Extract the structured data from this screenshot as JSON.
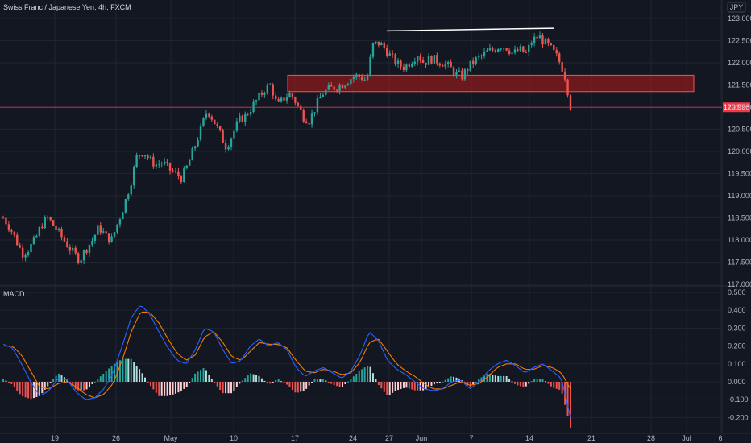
{
  "header": {
    "title": "Swiss Franc / Japanese Yen, 4h, FXCM",
    "currency": "JPY"
  },
  "macd_label": "MACD",
  "colors": {
    "bg": "#131722",
    "grid": "#1f2430",
    "up": "#26a69a",
    "down": "#ef5350",
    "macd": "#2962ff",
    "signal": "#f57c00",
    "zone": "#b71c1c",
    "priceLine": "#f23645"
  },
  "chart_data": [
    {
      "type": "candlestick",
      "symbol": "CHFJPY",
      "timeframe": "4h",
      "last_price": "120.996",
      "ylim": [
        117.0,
        123.1
      ],
      "y_ticks": [
        "123.000",
        "122.500",
        "122.000",
        "121.500",
        "121.000",
        "120.500",
        "120.000",
        "119.500",
        "119.000",
        "118.500",
        "118.000",
        "117.500",
        "117.000"
      ],
      "x_ticks": [
        "19",
        "26",
        "May",
        "10",
        "17",
        "24",
        "27",
        "Jun",
        "7",
        "14",
        "21",
        "28",
        "Jul",
        "6"
      ],
      "zone": {
        "from_tick": "17",
        "to_tick": "6",
        "low": 121.35,
        "high": 121.72
      },
      "trendline": {
        "start": 122.72,
        "end": 122.78
      },
      "close_path": [
        118.5,
        118.3,
        118.0,
        117.7,
        117.8,
        118.0,
        118.35,
        118.5,
        118.3,
        118.1,
        117.9,
        117.7,
        117.55,
        117.8,
        118.0,
        118.3,
        118.1,
        118.0,
        118.4,
        118.8,
        119.3,
        119.9,
        120.0,
        119.8,
        119.7,
        119.75,
        119.6,
        119.5,
        119.4,
        119.7,
        120.1,
        120.5,
        120.95,
        120.7,
        120.4,
        120.1,
        120.4,
        120.7,
        120.8,
        121.0,
        121.2,
        121.4,
        121.5,
        121.0,
        121.2,
        121.3,
        121.1,
        120.8,
        120.7,
        121.0,
        121.3,
        121.4,
        121.45,
        121.5,
        121.6,
        121.7,
        121.7,
        121.6,
        122.4,
        122.45,
        122.3,
        122.1,
        121.95,
        121.9,
        122.05,
        122.2,
        122.0,
        122.1,
        122.05,
        122.0,
        121.9,
        121.75,
        121.7,
        121.9,
        122.05,
        122.15,
        122.25,
        122.3,
        122.4,
        122.35,
        122.2,
        122.3,
        122.2,
        122.5,
        122.6,
        122.45,
        122.3,
        122.1,
        121.8,
        121.05
      ],
      "macd_ylim": [
        -0.23,
        0.52
      ],
      "macd_ticks": [
        "0.500",
        "0.400",
        "0.300",
        "0.200",
        "0.100",
        "0.000",
        "-0.100",
        "-0.200"
      ],
      "macd_path": [
        0.21,
        0.19,
        0.1,
        0.0,
        -0.08,
        -0.05,
        0.02,
        0.01,
        -0.06,
        -0.1,
        -0.09,
        -0.04,
        0.05,
        0.2,
        0.36,
        0.43,
        0.38,
        0.28,
        0.19,
        0.12,
        0.1,
        0.18,
        0.3,
        0.28,
        0.18,
        0.1,
        0.12,
        0.2,
        0.24,
        0.2,
        0.22,
        0.18,
        0.08,
        0.03,
        0.06,
        0.08,
        0.05,
        0.02,
        0.06,
        0.15,
        0.28,
        0.23,
        0.12,
        0.07,
        0.04,
        0.0,
        -0.04,
        -0.05,
        -0.04,
        0.0,
        0.01,
        -0.04,
        0.0,
        0.06,
        0.1,
        0.12,
        0.09,
        0.05,
        0.08,
        0.1,
        0.06,
        0.02,
        -0.2
      ],
      "signal_path": [
        0.2,
        0.2,
        0.15,
        0.06,
        -0.03,
        -0.04,
        -0.01,
        0.0,
        -0.03,
        -0.07,
        -0.09,
        -0.07,
        -0.01,
        0.12,
        0.28,
        0.39,
        0.39,
        0.33,
        0.24,
        0.16,
        0.12,
        0.15,
        0.25,
        0.28,
        0.22,
        0.14,
        0.12,
        0.17,
        0.22,
        0.21,
        0.21,
        0.19,
        0.12,
        0.06,
        0.05,
        0.07,
        0.06,
        0.04,
        0.05,
        0.11,
        0.22,
        0.24,
        0.17,
        0.1,
        0.06,
        0.03,
        -0.01,
        -0.04,
        -0.04,
        -0.02,
        0.0,
        -0.02,
        -0.01,
        0.03,
        0.08,
        0.1,
        0.1,
        0.07,
        0.07,
        0.09,
        0.08,
        0.05,
        -0.04
      ]
    }
  ]
}
